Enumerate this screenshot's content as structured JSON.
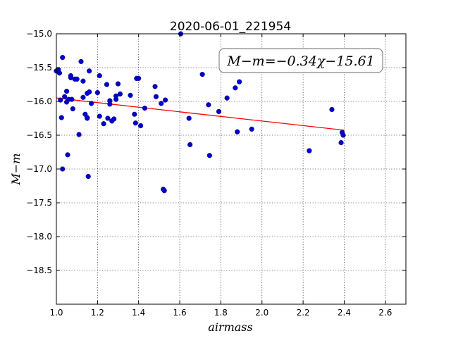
{
  "chart_data": {
    "type": "scatter",
    "title": "2020-06-01_221954",
    "xlabel": "airmass",
    "ylabel": "M−m",
    "xlim": [
      1.0,
      2.7
    ],
    "ylim": [
      -15.0,
      -19.0
    ],
    "y_inverted": true,
    "grid": true,
    "x_ticks": [
      1.0,
      1.2,
      1.4,
      1.6,
      1.8,
      2.0,
      2.2,
      2.4,
      2.6
    ],
    "x_tick_labels": [
      "1.0",
      "1.2",
      "1.4",
      "1.6",
      "1.8",
      "2.0",
      "2.2",
      "2.4",
      "2.6"
    ],
    "y_ticks": [
      -15.0,
      -15.5,
      -16.0,
      -16.5,
      -17.0,
      -17.5,
      -18.0,
      -18.5
    ],
    "y_tick_labels": [
      "−15.0",
      "−15.5",
      "−16.0",
      "−16.5",
      "−17.0",
      "−17.5",
      "−18.0",
      "−18.5"
    ],
    "annotation": "M−m=−0.34χ−15.61",
    "annotation_location": "top-right",
    "fit": {
      "slope": -0.34,
      "intercept": -15.61,
      "x_range": [
        1.0,
        2.4
      ],
      "color": "#ff0000"
    },
    "marker_color": "#0000cc",
    "series": [
      {
        "x": [
          1.0,
          1.01,
          1.015,
          1.02,
          1.025,
          1.03,
          1.03,
          1.04,
          1.05,
          1.05,
          1.055,
          1.06,
          1.07,
          1.07,
          1.075,
          1.08,
          1.09,
          1.1,
          1.11,
          1.12,
          1.13,
          1.13,
          1.14,
          1.15,
          1.15,
          1.15,
          1.155,
          1.16,
          1.16,
          1.17,
          1.2,
          1.21,
          1.21,
          1.23,
          1.245,
          1.25,
          1.26,
          1.26,
          1.27,
          1.28,
          1.29,
          1.29,
          1.3,
          1.31,
          1.36,
          1.38,
          1.385,
          1.39,
          1.4,
          1.41,
          1.43,
          1.48,
          1.485,
          1.51,
          1.52,
          1.525,
          1.53,
          1.605,
          1.645,
          1.65,
          1.71,
          1.74,
          1.745,
          1.79,
          1.83,
          1.87,
          1.88,
          1.89,
          1.95,
          2.23,
          2.34,
          2.385,
          2.39,
          2.395
        ],
        "y": [
          -15.55,
          -15.53,
          -15.58,
          -15.98,
          -16.24,
          -17.0,
          -15.35,
          -15.93,
          -15.85,
          -16.01,
          -16.79,
          -15.97,
          -15.65,
          -15.62,
          -15.97,
          -16.11,
          -15.67,
          -15.67,
          -16.49,
          -15.41,
          -15.7,
          -15.94,
          -16.19,
          -15.88,
          -16.24,
          -16.25,
          -17.11,
          -15.55,
          -15.86,
          -16.03,
          -15.87,
          -16.22,
          -15.62,
          -16.33,
          -15.75,
          -16.25,
          -16.04,
          -15.99,
          -16.29,
          -16.26,
          -15.97,
          -15.92,
          -15.74,
          -15.89,
          -15.91,
          -16.19,
          -16.32,
          -15.66,
          -15.66,
          -16.36,
          -16.1,
          -15.78,
          -15.93,
          -16.03,
          -17.3,
          -17.32,
          -15.98,
          -15.0,
          -16.25,
          -16.64,
          -15.6,
          -16.05,
          -16.8,
          -16.15,
          -15.95,
          -15.8,
          -16.45,
          -15.71,
          -16.41,
          -16.73,
          -16.12,
          -16.61,
          -16.46,
          -16.5
        ]
      }
    ]
  }
}
